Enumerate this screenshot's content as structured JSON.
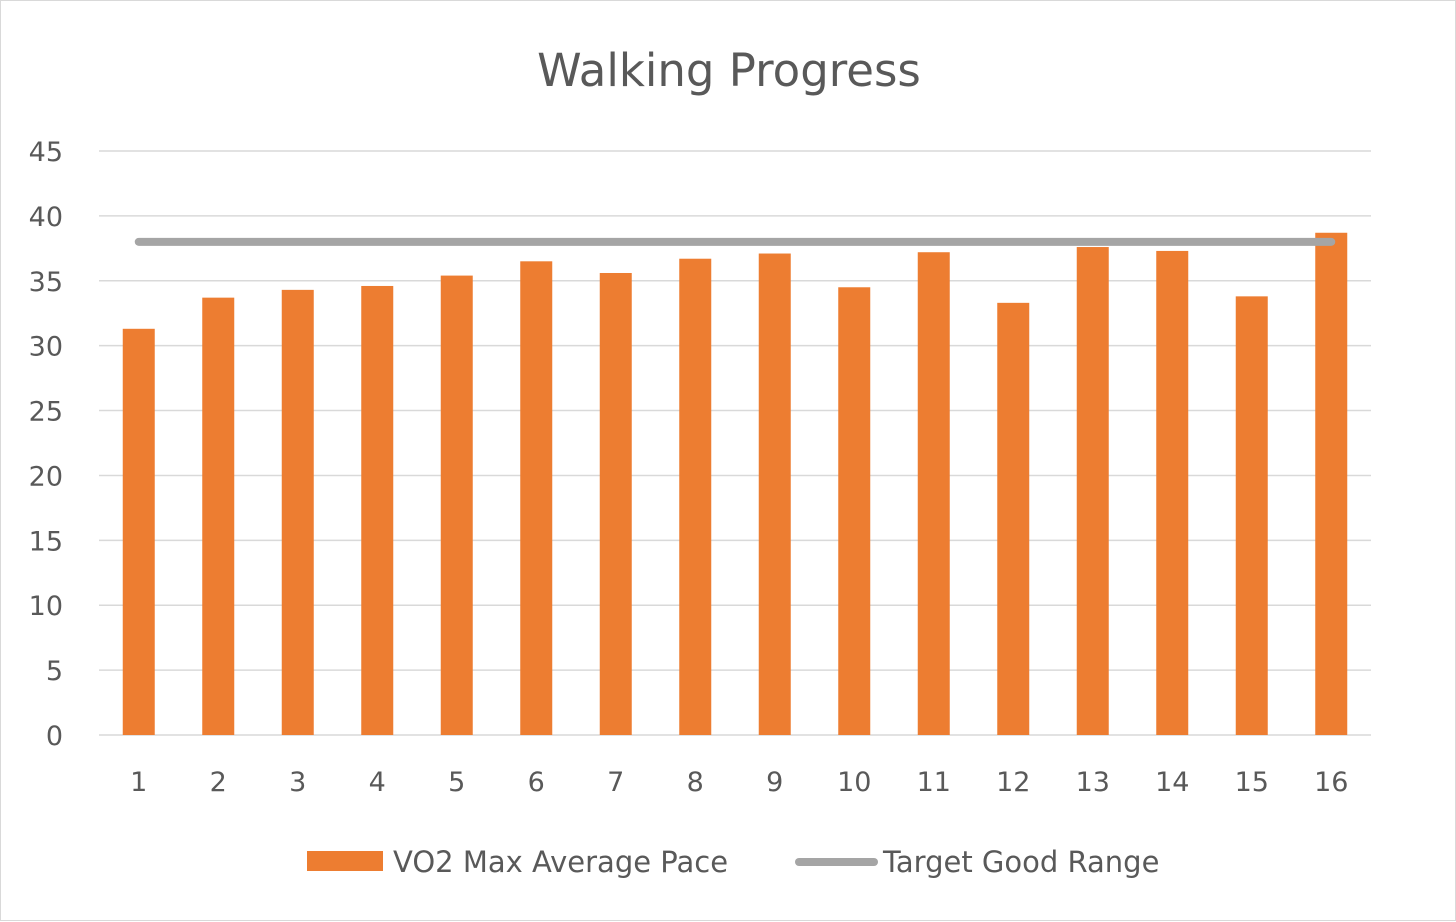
{
  "chart_data": {
    "type": "bar",
    "title": "Walking Progress",
    "xlabel": "",
    "ylabel": "",
    "categories": [
      "1",
      "2",
      "3",
      "4",
      "5",
      "6",
      "7",
      "8",
      "9",
      "10",
      "11",
      "12",
      "13",
      "14",
      "15",
      "16"
    ],
    "series": [
      {
        "name": "VO2 Max Average Pace",
        "type": "bar",
        "color": "#ED7D31",
        "values": [
          31.3,
          33.7,
          34.3,
          34.6,
          35.4,
          36.5,
          35.6,
          36.7,
          37.1,
          34.5,
          37.2,
          33.3,
          37.6,
          37.3,
          33.8,
          38.7
        ]
      },
      {
        "name": "Target Good Range",
        "type": "line",
        "color": "#A5A5A5",
        "values": [
          38,
          38,
          38,
          38,
          38,
          38,
          38,
          38,
          38,
          38,
          38,
          38,
          38,
          38,
          38,
          38
        ]
      }
    ],
    "ylim": [
      0,
      45
    ],
    "yticks": [
      "0",
      "5",
      "10",
      "15",
      "20",
      "25",
      "30",
      "35",
      "40",
      "45"
    ],
    "ytick_values": [
      0,
      5,
      10,
      15,
      20,
      25,
      30,
      35,
      40,
      45
    ],
    "grid": true,
    "legend_position": "bottom",
    "gridline_color": "#D9D9D9"
  }
}
